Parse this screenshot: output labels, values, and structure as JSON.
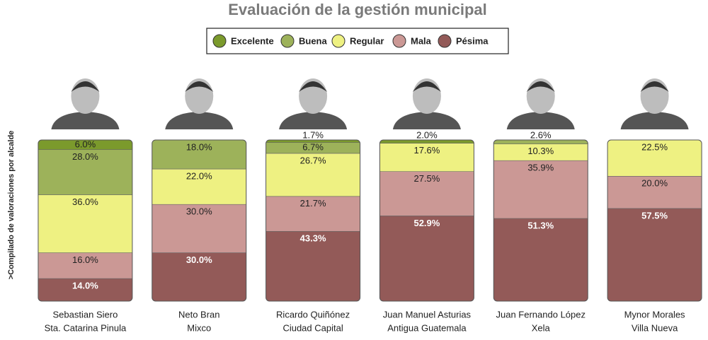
{
  "chart_data": {
    "type": "stacked-bar",
    "title": "Evaluación de la gestión municipal",
    "y_label": ">Compilado de valoraciones por alcalde",
    "categories": [
      "Sebastian Siero",
      "Neto Bran",
      "Ricardo Quiñónez",
      "Juan Manuel Asturias",
      "Juan Fernando López",
      "Mynor Morales"
    ],
    "locations": [
      "Sta. Catarina Pinula",
      "Mixco",
      "Ciudad Capital",
      "Antigua Guatemala",
      "Xela",
      "Villa Nueva"
    ],
    "ylim": [
      0,
      100
    ],
    "legend": "top",
    "series": [
      {
        "name": "Excelente",
        "color": "#7b9a2c",
        "values": [
          6.0,
          0,
          1.7,
          2.0,
          0,
          0
        ],
        "value_labels": [
          "6.0%",
          null,
          "1.7%",
          "2.0%",
          null,
          null
        ]
      },
      {
        "name": "Buena",
        "color": "#9db25a",
        "values": [
          28.0,
          18.0,
          6.7,
          0,
          2.6,
          0
        ],
        "value_labels": [
          "28.0%",
          "18.0%",
          "6.7%",
          null,
          "2.6%",
          null
        ]
      },
      {
        "name": "Regular",
        "color": "#eef182",
        "values": [
          36.0,
          22.0,
          26.7,
          17.6,
          10.3,
          22.5
        ],
        "value_labels": [
          "36.0%",
          "22.0%",
          "26.7%",
          "17.6%",
          "10.3%",
          "22.5%"
        ]
      },
      {
        "name": "Mala",
        "color": "#cb9895",
        "values": [
          16.0,
          30.0,
          21.7,
          27.5,
          35.9,
          20.0
        ],
        "value_labels": [
          "16.0%",
          "30.0%",
          "21.7%",
          "27.5%",
          "35.9%",
          "20.0%"
        ]
      },
      {
        "name": "Pésima",
        "color": "#935a58",
        "values": [
          14.0,
          30.0,
          43.3,
          52.9,
          51.3,
          57.5
        ],
        "value_labels": [
          "14.0%",
          "30.0%",
          "43.3%",
          "52.9%",
          "51.3%",
          "57.5%"
        ]
      }
    ]
  }
}
